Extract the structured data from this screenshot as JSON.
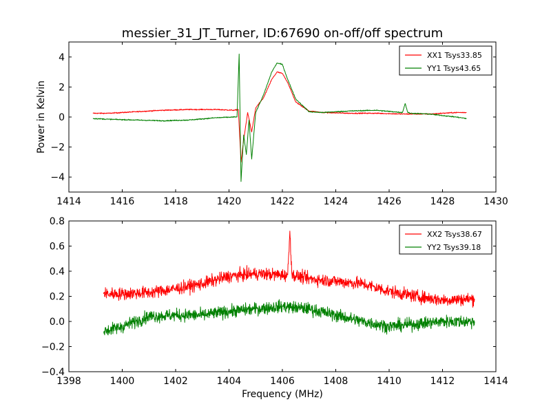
{
  "figure": {
    "title": "messier_31_JT_Turner, ID:67690 on-off/off spectrum",
    "background": "#ffffff"
  },
  "chart_data": [
    {
      "type": "line",
      "id": "top",
      "title": "messier_31_JT_Turner, ID:67690 on-off/off spectrum",
      "xlabel": "",
      "ylabel": "Power in Kelvin",
      "xlim": [
        1414,
        1430
      ],
      "ylim": [
        -5,
        5
      ],
      "xticks": [
        1414,
        1416,
        1418,
        1420,
        1422,
        1424,
        1426,
        1428,
        1430
      ],
      "yticks": [
        -4,
        -2,
        0,
        2,
        4
      ],
      "grid": false,
      "legend": "top-right",
      "series": [
        {
          "name": "XX1 Tsys33.85",
          "color": "#ff0000",
          "x": [
            1414.9,
            1415.5,
            1416.5,
            1417.5,
            1418.5,
            1419.5,
            1420.2,
            1420.35,
            1420.45,
            1420.55,
            1420.7,
            1420.85,
            1421.0,
            1421.3,
            1421.6,
            1421.8,
            1422.0,
            1422.2,
            1422.5,
            1423.0,
            1423.5,
            1424.5,
            1425.5,
            1426.5,
            1427.5,
            1428.5,
            1428.9
          ],
          "y": [
            0.25,
            0.25,
            0.35,
            0.45,
            0.5,
            0.5,
            0.45,
            0.5,
            -3.0,
            -1.5,
            0.3,
            -1.0,
            0.6,
            1.3,
            2.5,
            3.0,
            2.9,
            2.3,
            1.0,
            0.4,
            0.3,
            0.25,
            0.25,
            0.2,
            0.2,
            0.3,
            0.3
          ],
          "noise": 0.05
        },
        {
          "name": "YY1 Tsys43.65",
          "color": "#008000",
          "x": [
            1414.9,
            1415.5,
            1416.5,
            1417.5,
            1418.5,
            1419.5,
            1420.2,
            1420.3,
            1420.38,
            1420.45,
            1420.55,
            1420.65,
            1420.75,
            1420.85,
            1421.0,
            1421.3,
            1421.6,
            1421.8,
            1422.0,
            1422.2,
            1422.5,
            1423.0,
            1423.5,
            1424.5,
            1425.5,
            1426.5,
            1426.6,
            1426.7,
            1426.8,
            1427.5,
            1428.5,
            1428.9
          ],
          "y": [
            -0.1,
            -0.15,
            -0.2,
            -0.25,
            -0.2,
            -0.05,
            0.0,
            0.0,
            4.2,
            -4.3,
            -1.2,
            -2.5,
            -0.2,
            -2.8,
            0.3,
            1.5,
            3.0,
            3.6,
            3.5,
            2.5,
            1.2,
            0.35,
            0.3,
            0.4,
            0.45,
            0.3,
            0.9,
            0.3,
            0.25,
            0.2,
            0.0,
            -0.1
          ],
          "noise": 0.05
        }
      ]
    },
    {
      "type": "line",
      "id": "bottom",
      "title": "",
      "xlabel": "Frequency (MHz)",
      "ylabel": "",
      "xlim": [
        1398,
        1414
      ],
      "ylim": [
        -0.4,
        0.8
      ],
      "xticks": [
        1398,
        1400,
        1402,
        1404,
        1406,
        1408,
        1410,
        1412,
        1414
      ],
      "yticks": [
        -0.4,
        -0.2,
        0.0,
        0.2,
        0.4,
        0.6,
        0.8
      ],
      "grid": false,
      "legend": "top-right",
      "series": [
        {
          "name": "XX2 Tsys38.67",
          "color": "#ff0000",
          "x": [
            1399.3,
            1400.0,
            1401.0,
            1402.0,
            1403.0,
            1404.0,
            1405.0,
            1406.0,
            1406.2,
            1406.28,
            1406.36,
            1407.0,
            1408.0,
            1409.0,
            1410.0,
            1411.0,
            1412.0,
            1413.2
          ],
          "y": [
            0.22,
            0.22,
            0.23,
            0.26,
            0.3,
            0.36,
            0.38,
            0.37,
            0.37,
            0.72,
            0.37,
            0.34,
            0.32,
            0.3,
            0.24,
            0.2,
            0.17,
            0.18
          ],
          "noise": 0.07
        },
        {
          "name": "YY2 Tsys39.18",
          "color": "#008000",
          "x": [
            1399.3,
            1400.0,
            1401.0,
            1402.0,
            1403.0,
            1404.0,
            1405.0,
            1406.0,
            1407.0,
            1408.0,
            1409.0,
            1410.0,
            1411.0,
            1412.0,
            1413.2
          ],
          "y": [
            -0.08,
            -0.04,
            0.04,
            0.05,
            0.05,
            0.08,
            0.1,
            0.12,
            0.1,
            0.05,
            0.0,
            -0.04,
            -0.02,
            0.0,
            0.0
          ],
          "noise": 0.07
        }
      ]
    }
  ]
}
